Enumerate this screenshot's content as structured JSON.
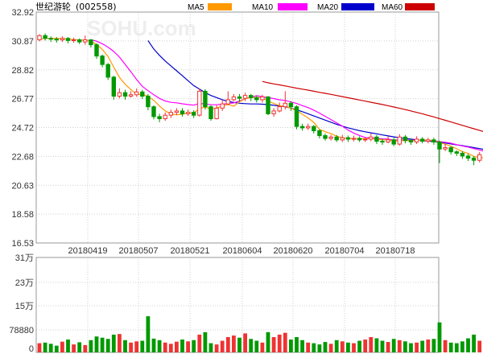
{
  "header": {
    "title": "世纪游轮",
    "code": "(002558)"
  },
  "watermark": "SOHU.com",
  "legend": [
    {
      "name": "MA5",
      "color": "#ff9900"
    },
    {
      "name": "MA10",
      "color": "#ff00ff"
    },
    {
      "name": "MA20",
      "color": "#0000cc"
    },
    {
      "name": "MA60",
      "color": "#cc0000"
    }
  ],
  "colors": {
    "up": "#ee3333",
    "down": "#009900",
    "grid": "#cfcfcf",
    "frame": "#999999"
  },
  "chart_data": [
    {
      "type": "candlestick",
      "ylim": [
        16.53,
        32.92
      ],
      "ytick_labels": [
        "32.92",
        "30.87",
        "28.82",
        "26.77",
        "24.72",
        "22.68",
        "20.63",
        "18.58",
        "16.53"
      ],
      "xtick_labels": [
        "20180419",
        "20180507",
        "20180521",
        "20180604",
        "20180620",
        "20180704",
        "20180718"
      ],
      "candles": [
        [
          30.95,
          31.25,
          31.35,
          30.85
        ],
        [
          31.25,
          31.05,
          31.4,
          30.9
        ],
        [
          31.05,
          31.0,
          31.2,
          30.8
        ],
        [
          31.0,
          30.95,
          31.15,
          30.75
        ],
        [
          30.95,
          31.05,
          31.2,
          30.8
        ],
        [
          31.05,
          30.9,
          31.15,
          30.7
        ],
        [
          30.9,
          30.95,
          31.1,
          30.75
        ],
        [
          30.95,
          30.8,
          31.05,
          30.65
        ],
        [
          30.8,
          30.95,
          31.25,
          30.6
        ],
        [
          30.95,
          30.6,
          31.0,
          30.4
        ],
        [
          30.6,
          29.8,
          30.7,
          29.6
        ],
        [
          29.8,
          29.2,
          29.9,
          29.0
        ],
        [
          29.2,
          28.3,
          29.3,
          28.1
        ],
        [
          28.3,
          26.95,
          28.4,
          26.7
        ],
        [
          26.95,
          27.2,
          27.5,
          26.8
        ],
        [
          27.2,
          26.95,
          27.4,
          26.7
        ],
        [
          26.95,
          27.05,
          27.3,
          26.85
        ],
        [
          27.05,
          27.25,
          27.5,
          26.9
        ],
        [
          27.25,
          26.95,
          27.4,
          26.75
        ],
        [
          26.95,
          26.2,
          27.1,
          25.95
        ],
        [
          26.2,
          25.5,
          26.3,
          25.3
        ],
        [
          25.5,
          25.35,
          25.7,
          25.1
        ],
        [
          25.35,
          25.6,
          25.8,
          25.2
        ],
        [
          25.6,
          25.8,
          26.0,
          25.4
        ],
        [
          25.8,
          25.9,
          26.1,
          25.6
        ],
        [
          25.9,
          25.7,
          26.1,
          25.5
        ],
        [
          25.7,
          25.8,
          26.0,
          25.55
        ],
        [
          25.8,
          25.6,
          25.95,
          25.4
        ],
        [
          25.6,
          27.3,
          27.5,
          25.5
        ],
        [
          27.3,
          26.2,
          27.45,
          26.0
        ],
        [
          26.2,
          25.35,
          26.3,
          25.2
        ],
        [
          25.35,
          26.1,
          26.3,
          25.3
        ],
        [
          26.1,
          26.4,
          26.7,
          25.9
        ],
        [
          26.4,
          26.7,
          27.3,
          26.3
        ],
        [
          26.7,
          26.9,
          27.1,
          26.6
        ],
        [
          26.9,
          26.8,
          27.1,
          26.55
        ],
        [
          26.8,
          27.0,
          27.2,
          26.6
        ],
        [
          27.0,
          26.85,
          27.1,
          26.6
        ],
        [
          26.85,
          26.7,
          27.0,
          26.5
        ],
        [
          26.7,
          26.9,
          27.05,
          26.5
        ],
        [
          26.9,
          25.7,
          26.95,
          25.6
        ],
        [
          25.7,
          25.9,
          26.1,
          25.5
        ],
        [
          25.9,
          26.2,
          26.5,
          25.8
        ],
        [
          26.2,
          26.45,
          27.3,
          26.0
        ],
        [
          26.45,
          26.2,
          26.6,
          25.9
        ],
        [
          26.2,
          24.8,
          26.3,
          24.6
        ],
        [
          24.8,
          24.7,
          25.0,
          24.5
        ],
        [
          24.7,
          24.8,
          25.0,
          24.55
        ],
        [
          24.8,
          24.5,
          24.9,
          24.3
        ],
        [
          24.5,
          24.15,
          24.6,
          23.95
        ],
        [
          24.15,
          23.95,
          24.3,
          23.8
        ],
        [
          23.95,
          24.05,
          24.2,
          23.8
        ],
        [
          24.05,
          23.85,
          24.2,
          23.7
        ],
        [
          23.85,
          24.0,
          24.2,
          23.7
        ],
        [
          24.0,
          23.9,
          24.15,
          23.7
        ],
        [
          23.9,
          23.95,
          24.15,
          23.75
        ],
        [
          23.95,
          23.85,
          24.1,
          23.7
        ],
        [
          23.85,
          23.9,
          24.05,
          23.7
        ],
        [
          23.9,
          24.05,
          24.3,
          23.75
        ],
        [
          24.05,
          23.75,
          24.2,
          23.55
        ],
        [
          23.75,
          23.7,
          23.95,
          23.5
        ],
        [
          23.7,
          23.85,
          24.1,
          23.6
        ],
        [
          23.85,
          23.55,
          24.0,
          23.4
        ],
        [
          23.55,
          24.05,
          24.25,
          23.45
        ],
        [
          24.05,
          23.8,
          24.2,
          23.6
        ],
        [
          23.8,
          23.7,
          23.95,
          23.5
        ],
        [
          23.7,
          23.9,
          24.1,
          23.55
        ],
        [
          23.9,
          23.75,
          24.05,
          23.6
        ],
        [
          23.75,
          23.85,
          24.0,
          23.6
        ],
        [
          23.85,
          23.7,
          24.0,
          23.5
        ],
        [
          23.7,
          23.2,
          23.8,
          22.2
        ],
        [
          23.2,
          23.3,
          23.55,
          23.05
        ],
        [
          23.3,
          23.0,
          23.4,
          22.8
        ],
        [
          23.0,
          22.9,
          23.1,
          22.7
        ],
        [
          22.9,
          22.7,
          23.05,
          22.5
        ],
        [
          22.7,
          22.55,
          22.85,
          22.35
        ],
        [
          22.55,
          22.4,
          22.7,
          22.05
        ],
        [
          22.4,
          22.8,
          23.0,
          22.25
        ],
        [
          22.8,
          22.3,
          22.9,
          22.1
        ],
        [
          22.3,
          22.35,
          22.5,
          22.15
        ],
        [
          22.35,
          22.45,
          22.6,
          22.2
        ],
        [
          22.45,
          22.4,
          22.65,
          22.2
        ],
        [
          22.4,
          22.25,
          22.55,
          22.05
        ],
        [
          22.25,
          22.35,
          22.5,
          22.1
        ],
        [
          22.35,
          22.2,
          22.5,
          22.0
        ],
        [
          22.2,
          22.15,
          22.35,
          21.9
        ],
        [
          22.15,
          22.1,
          22.3,
          21.85
        ],
        [
          22.1,
          21.95,
          22.2,
          21.75
        ],
        [
          21.95,
          21.4,
          22.0,
          21.2
        ],
        [
          21.4,
          20.2,
          21.5,
          19.9
        ],
        [
          20.2,
          18.9,
          20.3,
          18.8
        ],
        [
          18.9,
          18.6,
          19.3,
          18.4
        ],
        [
          18.6,
          19.5,
          19.7,
          18.5
        ],
        [
          19.5,
          20.1,
          20.3,
          19.3
        ]
      ],
      "ma5": [
        31.0,
        31.05,
        31.06,
        31.05,
        31.04,
        30.99,
        30.97,
        30.93,
        30.93,
        30.85,
        30.62,
        30.27,
        29.77,
        29.01,
        28.29,
        27.79,
        27.42,
        27.08,
        27.08,
        26.94,
        26.65,
        26.25,
        25.91,
        25.68,
        25.63,
        25.67,
        25.76,
        25.76,
        26.06,
        26.18,
        26.04,
        26.11,
        26.25,
        26.37,
        26.23,
        26.55,
        26.77,
        26.85,
        26.85,
        26.85,
        26.61,
        26.43,
        26.27,
        26.23,
        26.09,
        25.91,
        25.67,
        25.41,
        25.09,
        24.59,
        24.43,
        24.29,
        24.11,
        24.0,
        23.95,
        23.95,
        23.93,
        23.92,
        23.94,
        23.9,
        23.85,
        23.85,
        23.77,
        23.78,
        23.8,
        23.79,
        23.8,
        23.85,
        23.8,
        23.78,
        23.66,
        23.54,
        23.4,
        23.21,
        23.02,
        22.89,
        22.67,
        22.61,
        22.55,
        22.52,
        22.47,
        22.42,
        22.35,
        22.35,
        22.33,
        22.27,
        22.19,
        22.1,
        21.96,
        21.57,
        20.93,
        20.21,
        19.73,
        19.41
      ],
      "ma10": [
        null,
        null,
        null,
        null,
        null,
        null,
        null,
        null,
        null,
        30.96,
        30.85,
        30.67,
        30.43,
        30.12,
        29.72,
        29.21,
        28.68,
        28.13,
        27.65,
        27.34,
        27.05,
        26.79,
        26.61,
        26.51,
        26.48,
        26.41,
        26.35,
        26.31,
        26.43,
        26.4,
        26.34,
        26.34,
        26.38,
        26.42,
        26.47,
        26.61,
        26.77,
        26.88,
        26.98,
        26.92,
        26.84,
        26.78,
        26.69,
        26.65,
        26.54,
        26.43,
        26.28,
        26.14,
        25.96,
        25.75,
        25.52,
        25.29,
        25.05,
        24.83,
        24.54,
        24.33,
        24.16,
        24.01,
        23.99,
        23.95,
        23.92,
        23.9,
        23.83,
        23.85,
        23.84,
        23.82,
        23.82,
        23.81,
        23.8,
        23.79,
        23.72,
        23.68,
        23.61,
        23.51,
        23.42,
        23.34,
        23.23,
        23.13,
        23.01,
        22.88,
        22.78,
        22.69,
        22.62,
        22.57,
        22.49,
        22.42,
        22.37,
        22.34,
        22.28,
        22.13,
        21.81,
        21.43,
        21.09,
        20.84
      ],
      "ma20": [
        null,
        null,
        null,
        null,
        null,
        null,
        null,
        null,
        null,
        null,
        null,
        null,
        null,
        null,
        null,
        null,
        null,
        null,
        null,
        30.9,
        30.3,
        29.85,
        29.45,
        29.1,
        28.75,
        28.4,
        28.05,
        27.7,
        27.45,
        27.2,
        27.0,
        26.85,
        26.7,
        26.58,
        26.5,
        26.45,
        26.42,
        26.4,
        26.4,
        26.38,
        26.35,
        26.3,
        26.25,
        26.2,
        26.1,
        25.98,
        25.85,
        25.7,
        25.55,
        25.4,
        25.25,
        25.1,
        24.95,
        24.82,
        24.7,
        24.6,
        24.5,
        24.42,
        24.35,
        24.28,
        24.2,
        24.13,
        24.06,
        24.0,
        23.94,
        23.9,
        23.85,
        23.8,
        23.76,
        23.72,
        23.67,
        23.62,
        23.56,
        23.5,
        23.44,
        23.37,
        23.3,
        23.23,
        23.15,
        23.08,
        23.0,
        22.92,
        22.83,
        22.74,
        22.65,
        22.55,
        22.45,
        22.35,
        22.25,
        22.15,
        22.02,
        21.88,
        21.72,
        21.52
      ],
      "ma60": [
        null,
        null,
        null,
        null,
        null,
        null,
        null,
        null,
        null,
        null,
        null,
        null,
        null,
        null,
        null,
        null,
        null,
        null,
        null,
        null,
        null,
        null,
        null,
        null,
        null,
        null,
        null,
        null,
        null,
        null,
        null,
        null,
        null,
        null,
        null,
        null,
        null,
        null,
        null,
        28.0,
        27.9,
        27.82,
        27.75,
        27.68,
        27.6,
        27.52,
        27.45,
        27.38,
        27.3,
        27.22,
        27.15,
        27.08,
        27.0,
        26.92,
        26.84,
        26.76,
        26.68,
        26.6,
        26.52,
        26.44,
        26.36,
        26.27,
        26.18,
        26.09,
        26.0,
        25.9,
        25.8,
        25.7,
        25.59,
        25.48,
        25.36,
        25.24,
        25.12,
        25.0,
        24.88,
        24.76,
        24.64,
        24.52,
        24.4,
        24.28,
        24.16,
        24.05,
        23.95,
        23.85,
        23.76,
        23.67,
        23.58,
        23.5,
        23.43,
        23.36,
        23.3,
        23.24,
        23.19,
        23.15
      ]
    },
    {
      "type": "bar",
      "ylim": [
        0,
        310000
      ],
      "ytick_labels": [
        "31万",
        "23万",
        "15万",
        "78880",
        "0"
      ],
      "volumes": [
        30000,
        32000,
        28000,
        22000,
        35000,
        42000,
        26000,
        33000,
        24000,
        40000,
        52000,
        48000,
        44000,
        58000,
        60000,
        40000,
        32000,
        36000,
        38000,
        118000,
        45000,
        40000,
        32000,
        28000,
        35000,
        42000,
        36000,
        40000,
        58000,
        66000,
        30000,
        26000,
        38000,
        50000,
        55000,
        48000,
        62000,
        44000,
        38000,
        32000,
        66000,
        50000,
        58000,
        64000,
        42000,
        50000,
        40000,
        32000,
        30000,
        26000,
        34000,
        28000,
        40000,
        36000,
        32000,
        30000,
        38000,
        42000,
        50000,
        46000,
        38000,
        34000,
        44000,
        40000,
        36000,
        30000,
        32000,
        38000,
        42000,
        44000,
        98000,
        40000,
        32000,
        30000,
        36000,
        46000,
        58000,
        38000,
        42000,
        44000,
        46000,
        60000,
        50000,
        42000,
        38000,
        66000,
        74000,
        62000,
        60000,
        130000,
        270000,
        228000,
        170000,
        158000
      ]
    }
  ]
}
